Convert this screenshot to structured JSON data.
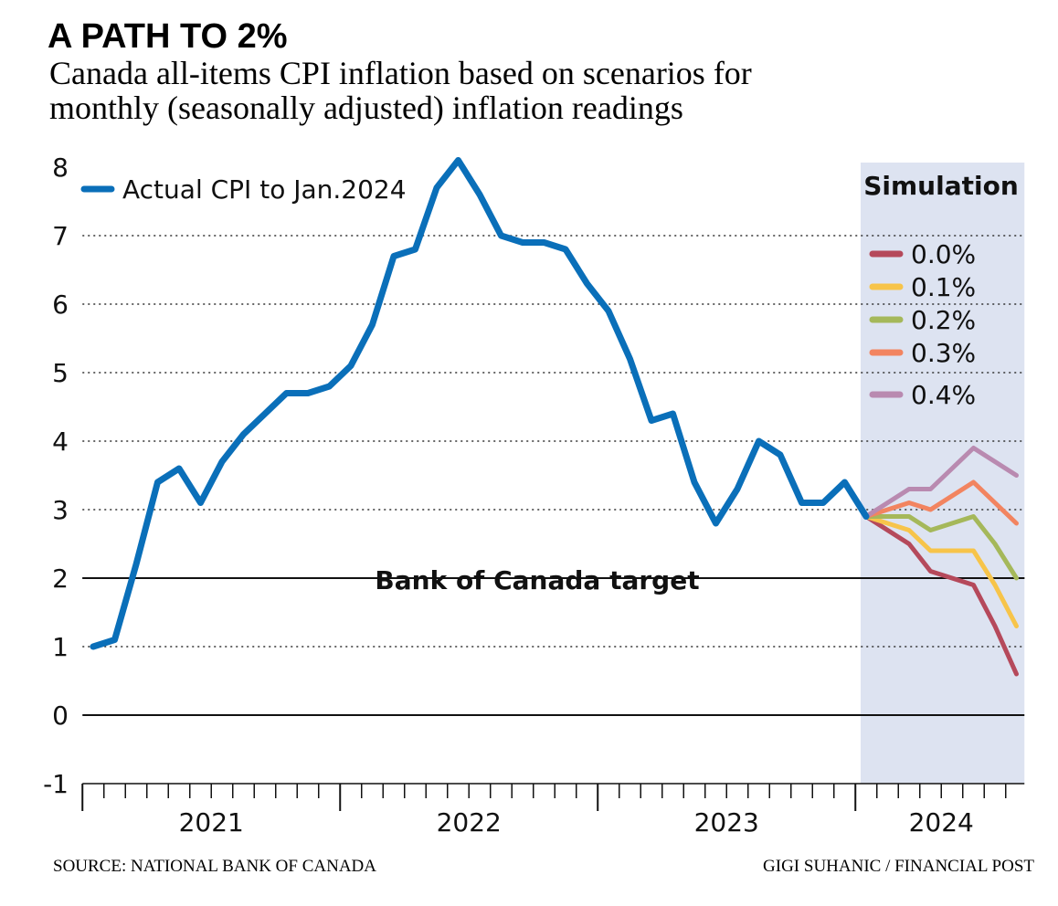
{
  "chart_data": {
    "type": "line",
    "title": "A PATH TO 2%",
    "subtitle": [
      "Canada all-items CPI inflation based on scenarios for",
      "monthly (seasonally adjusted) inflation readings"
    ],
    "categories": [
      null,
      null,
      null,
      null,
      null,
      null,
      null,
      null,
      null,
      null,
      null,
      null,
      null,
      null,
      null,
      null,
      null,
      null,
      null,
      null,
      null,
      null,
      null,
      null,
      null,
      null,
      null,
      null,
      null,
      null,
      null,
      null,
      null,
      null,
      null,
      null,
      null,
      null,
      null,
      null,
      null,
      null,
      null,
      null
    ],
    "year_labels": [
      "2021",
      "2022",
      "2023",
      "2024"
    ],
    "ylim": [
      -1,
      8
    ],
    "yticks": [
      -1,
      0,
      1,
      2,
      3,
      4,
      5,
      6,
      7,
      8
    ],
    "grid": true,
    "target": {
      "label": "Bank of Canada target",
      "value": 2
    },
    "simulation_label": "Simulation",
    "series": [
      {
        "name": "Actual CPI to Jan.2024",
        "color": "#0a6fb9",
        "values": [
          1.0,
          1.1,
          2.2,
          3.4,
          3.6,
          3.1,
          3.7,
          4.1,
          4.4,
          4.7,
          4.7,
          4.8,
          5.1,
          5.7,
          6.7,
          6.8,
          7.7,
          8.1,
          7.6,
          7.0,
          6.9,
          6.9,
          6.8,
          6.3,
          5.9,
          5.2,
          4.3,
          4.4,
          3.4,
          2.8,
          3.3,
          4.0,
          3.8,
          3.1,
          3.1,
          3.4,
          2.9,
          null,
          null,
          null,
          null,
          null,
          null,
          null
        ]
      },
      {
        "name": "0.0%",
        "color": "#b5495b",
        "values": [
          null,
          null,
          null,
          null,
          null,
          null,
          null,
          null,
          null,
          null,
          null,
          null,
          null,
          null,
          null,
          null,
          null,
          null,
          null,
          null,
          null,
          null,
          null,
          null,
          null,
          null,
          null,
          null,
          null,
          null,
          null,
          null,
          null,
          null,
          null,
          null,
          2.9,
          2.7,
          2.5,
          2.1,
          2.0,
          1.9,
          1.3,
          0.6
        ]
      },
      {
        "name": "0.1%",
        "color": "#f7c44a",
        "values": [
          null,
          null,
          null,
          null,
          null,
          null,
          null,
          null,
          null,
          null,
          null,
          null,
          null,
          null,
          null,
          null,
          null,
          null,
          null,
          null,
          null,
          null,
          null,
          null,
          null,
          null,
          null,
          null,
          null,
          null,
          null,
          null,
          null,
          null,
          null,
          null,
          2.9,
          2.8,
          2.7,
          2.4,
          2.4,
          2.4,
          1.9,
          1.3
        ]
      },
      {
        "name": "0.2%",
        "color": "#a5b85a",
        "values": [
          null,
          null,
          null,
          null,
          null,
          null,
          null,
          null,
          null,
          null,
          null,
          null,
          null,
          null,
          null,
          null,
          null,
          null,
          null,
          null,
          null,
          null,
          null,
          null,
          null,
          null,
          null,
          null,
          null,
          null,
          null,
          null,
          null,
          null,
          null,
          null,
          2.9,
          2.9,
          2.9,
          2.7,
          2.8,
          2.9,
          2.5,
          2.0
        ]
      },
      {
        "name": "0.3%",
        "color": "#f28460",
        "values": [
          null,
          null,
          null,
          null,
          null,
          null,
          null,
          null,
          null,
          null,
          null,
          null,
          null,
          null,
          null,
          null,
          null,
          null,
          null,
          null,
          null,
          null,
          null,
          null,
          null,
          null,
          null,
          null,
          null,
          null,
          null,
          null,
          null,
          null,
          null,
          null,
          2.9,
          3.0,
          3.1,
          3.0,
          3.2,
          3.4,
          3.1,
          2.8
        ]
      },
      {
        "name": "0.4%",
        "color": "#b98ab0",
        "values": [
          null,
          null,
          null,
          null,
          null,
          null,
          null,
          null,
          null,
          null,
          null,
          null,
          null,
          null,
          null,
          null,
          null,
          null,
          null,
          null,
          null,
          null,
          null,
          null,
          null,
          null,
          null,
          null,
          null,
          null,
          null,
          null,
          null,
          null,
          null,
          null,
          2.9,
          3.1,
          3.3,
          3.3,
          3.6,
          3.9,
          3.7,
          3.5
        ]
      }
    ],
    "source": "SOURCE: NATIONAL BANK OF CANADA",
    "credit": "GIGI SUHANIC / FINANCIAL POST"
  }
}
